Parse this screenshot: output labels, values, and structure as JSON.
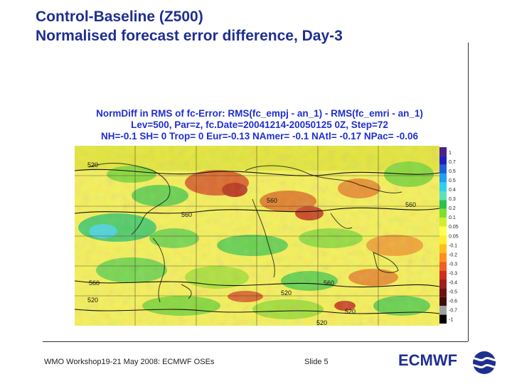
{
  "slide": {
    "title_line1": "Control-Baseline (Z500)",
    "title_line2": "Normalised forecast error difference, Day-3"
  },
  "map": {
    "header_line1": "NormDiff in RMS of fc-Error: RMS(fc_empj - an_1) - RMS(fc_emri - an_1)",
    "header_line2": "Lev=500, Par=z, fc.Date=20041214-20050125 0Z, Step=72",
    "header_line3": "NH=-0.1 SH= 0 Trop= 0 Eur=-0.13 NAmer= -0.1 NAtl= -0.17 NPac= -0.06",
    "contour_labels": [
      "520",
      "560",
      "560",
      "560",
      "560",
      "560",
      "520",
      "520",
      "520",
      "520"
    ],
    "scale_labels": [
      "1",
      "0.7",
      "0.5",
      "0.5",
      "0.4",
      "0.3",
      "0.2",
      "0.1",
      "0.05",
      "0.05",
      "-0.1",
      "-0.2",
      "-0.3",
      "-0.3",
      "-0.4",
      "-0.5",
      "-0.6",
      "-0.7",
      "-1"
    ],
    "scale_colors": [
      "#4b1f8f",
      "#1f1fbf",
      "#1f5fdf",
      "#1f9fef",
      "#2fcfef",
      "#5fdfbf",
      "#2fbf4f",
      "#7fdf2f",
      "#cfef2f",
      "#ffff4f",
      "#ffef2f",
      "#ffbf1f",
      "#ff8f1f",
      "#ef5f1f",
      "#cf2f1f",
      "#9f1f1f",
      "#6f0f0f",
      "#3f0a0a",
      "#9f9f9f",
      "#000000"
    ]
  },
  "footer": {
    "workshop": "WMO Workshop19-21 May 2008: ECMWF OSEs",
    "slide_number": "Slide 5",
    "brand": "ECMWF"
  }
}
